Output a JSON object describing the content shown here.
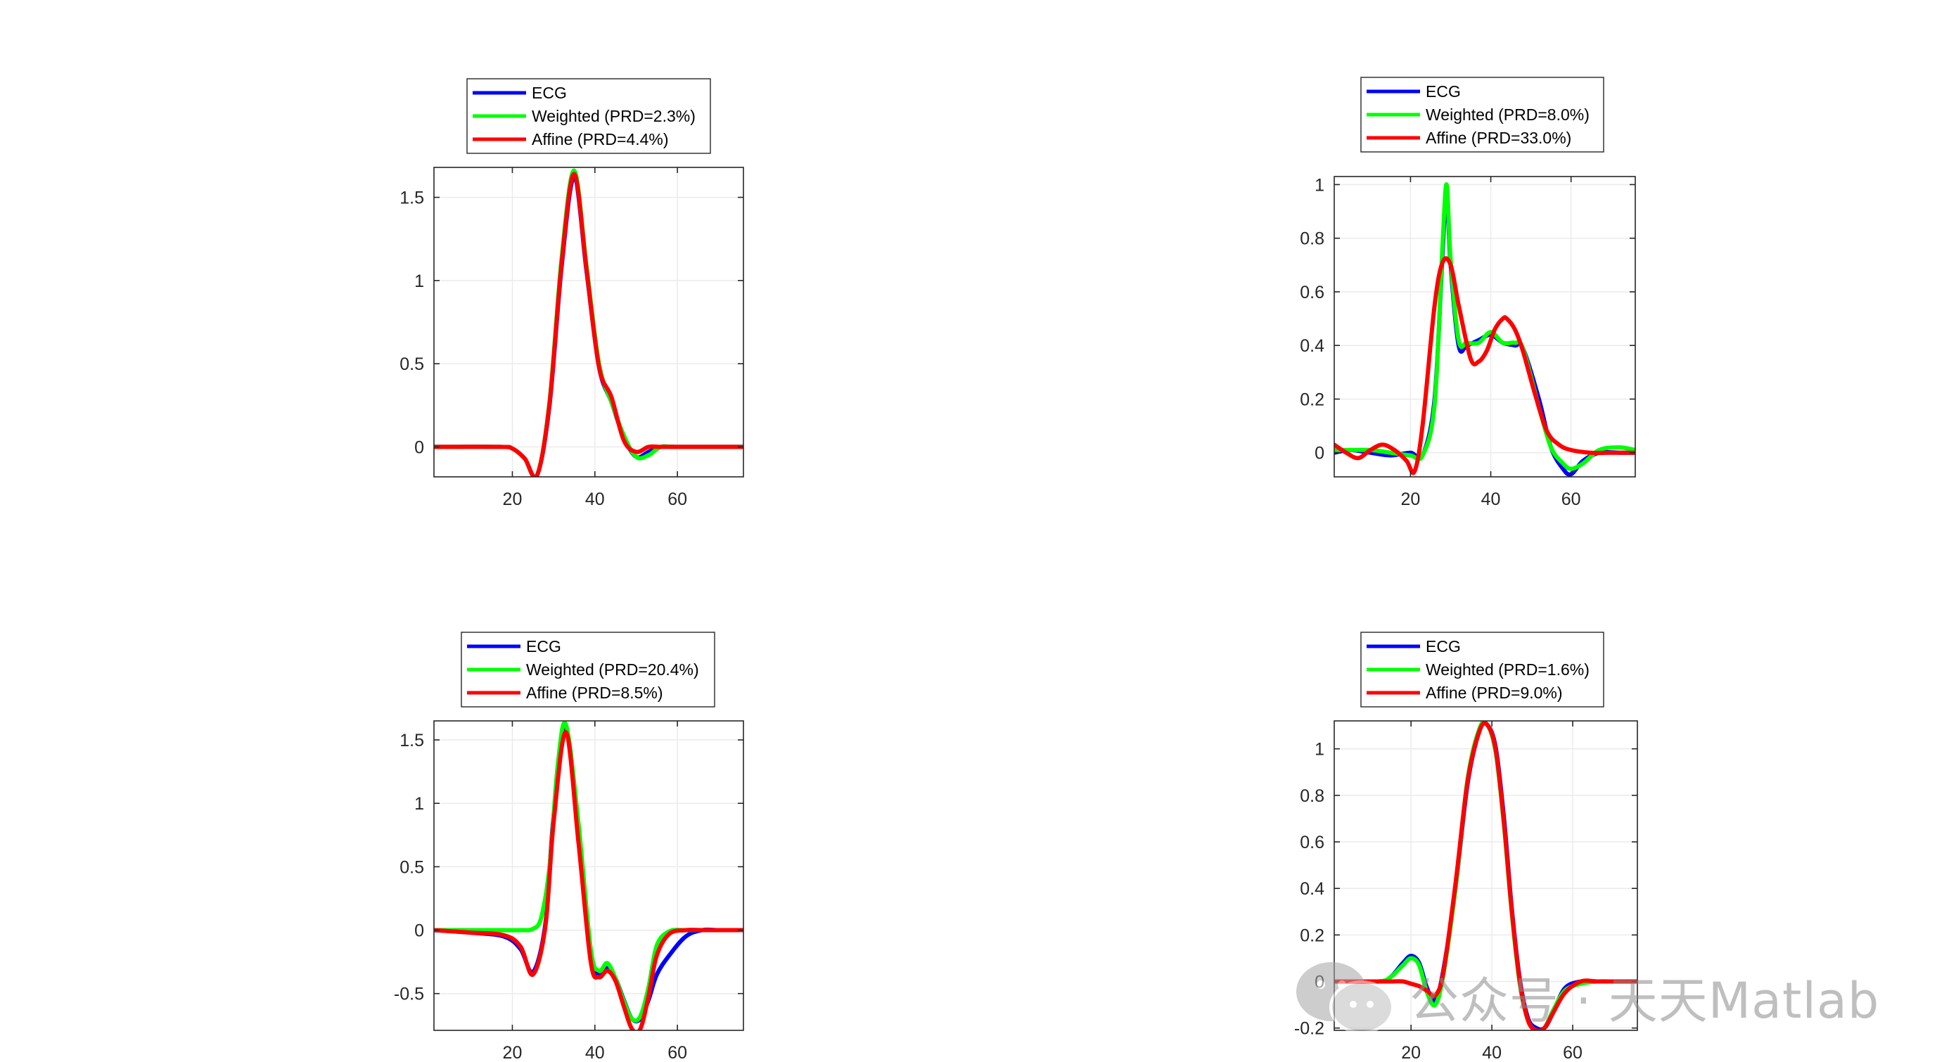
{
  "watermark": {
    "text": "公众号 · 天天Matlab",
    "icon": "wechat-icon"
  },
  "colors": {
    "ECG": "#0000ff",
    "Weighted": "#00ff00",
    "Affine": "#ff0000",
    "axis": "#262626",
    "grid": "#ebebeb"
  },
  "chart_data": [
    {
      "type": "line",
      "xlim": [
        1,
        76
      ],
      "ylim": [
        -0.18,
        1.68
      ],
      "xticks": [
        20,
        40,
        60
      ],
      "yticks": [
        0,
        0.5,
        1,
        1.5
      ],
      "ytick_labels": [
        "0",
        "0.5",
        "1",
        "1.5"
      ],
      "grid": true,
      "legend_position": "top-outside",
      "series": [
        {
          "name": "ECG",
          "x": [
            1,
            17,
            20,
            23,
            26,
            29,
            32,
            35,
            38,
            41,
            44,
            47,
            50,
            53,
            56,
            60,
            76
          ],
          "y": [
            0,
            0,
            -0.01,
            -0.07,
            -0.17,
            0.25,
            1.1,
            1.62,
            1.05,
            0.48,
            0.27,
            0.06,
            -0.06,
            -0.03,
            0,
            0,
            0
          ]
        },
        {
          "name": "Weighted (PRD=2.3%)",
          "x": [
            1,
            17,
            20,
            23,
            26,
            29,
            32,
            35,
            38,
            41,
            44,
            47,
            50,
            53,
            56,
            60,
            76
          ],
          "y": [
            0,
            0,
            -0.01,
            -0.07,
            -0.17,
            0.27,
            1.15,
            1.66,
            1.08,
            0.5,
            0.27,
            0.07,
            -0.06,
            -0.05,
            0,
            0,
            0
          ]
        },
        {
          "name": "Affine (PRD=4.4%)",
          "x": [
            1,
            17,
            20,
            23,
            26,
            29,
            32,
            35,
            38,
            41,
            44,
            47,
            50,
            53,
            56,
            60,
            76
          ],
          "y": [
            0,
            0,
            -0.01,
            -0.07,
            -0.17,
            0.26,
            1.12,
            1.64,
            1.06,
            0.48,
            0.3,
            0.04,
            -0.03,
            0,
            0,
            0,
            0
          ]
        }
      ]
    },
    {
      "type": "line",
      "xlim": [
        1,
        76
      ],
      "ylim": [
        -0.09,
        1.03
      ],
      "xticks": [
        20,
        40,
        60
      ],
      "yticks": [
        0,
        0.2,
        0.4,
        0.6,
        0.8,
        1
      ],
      "ytick_labels": [
        "0",
        "0.2",
        "0.4",
        "0.6",
        "0.8",
        "1"
      ],
      "grid": true,
      "legend_position": "top-outside",
      "series": [
        {
          "name": "ECG",
          "x": [
            1,
            5,
            10,
            15,
            20,
            23,
            26,
            28,
            29,
            30,
            32,
            34,
            37,
            40,
            43,
            46,
            48,
            52,
            55,
            58,
            60,
            63,
            67,
            72,
            76
          ],
          "y": [
            0,
            0.01,
            0,
            -0.01,
            0,
            -0.01,
            0.2,
            0.75,
            0.97,
            0.7,
            0.4,
            0.4,
            0.42,
            0.44,
            0.41,
            0.4,
            0.39,
            0.2,
            0.02,
            -0.06,
            -0.08,
            -0.03,
            0,
            0,
            0
          ]
        },
        {
          "name": "Weighted (PRD=8.0%)",
          "x": [
            1,
            5,
            10,
            15,
            20,
            23,
            26,
            28,
            29,
            30,
            32,
            34,
            37,
            40,
            43,
            46,
            48,
            52,
            55,
            58,
            60,
            63,
            67,
            72,
            76
          ],
          "y": [
            0.01,
            0.01,
            0.01,
            0,
            -0.01,
            -0.01,
            0.18,
            0.78,
            1.0,
            0.72,
            0.42,
            0.41,
            0.41,
            0.45,
            0.41,
            0.41,
            0.39,
            0.17,
            0.02,
            -0.04,
            -0.06,
            -0.04,
            0.01,
            0.02,
            0.01
          ]
        },
        {
          "name": "Affine (PRD=33.0%)",
          "x": [
            1,
            4,
            7,
            10,
            13,
            16,
            19,
            21,
            23,
            26,
            28,
            30,
            32,
            35,
            37,
            39,
            41,
            43,
            44,
            46,
            48,
            51,
            54,
            57,
            60,
            65,
            70,
            76
          ],
          "y": [
            0.03,
            0,
            -0.02,
            0.01,
            0.03,
            0.01,
            -0.03,
            -0.07,
            0.1,
            0.55,
            0.71,
            0.7,
            0.55,
            0.35,
            0.34,
            0.38,
            0.46,
            0.5,
            0.5,
            0.46,
            0.38,
            0.22,
            0.08,
            0.03,
            0.01,
            0,
            0,
            0
          ]
        }
      ]
    },
    {
      "type": "line",
      "xlim": [
        1,
        76
      ],
      "ylim": [
        -0.79,
        1.65
      ],
      "xticks": [
        20,
        40,
        60
      ],
      "yticks": [
        -0.5,
        0,
        0.5,
        1,
        1.5
      ],
      "ytick_labels": [
        "-0.5",
        "0",
        "0.5",
        "1",
        "1.5"
      ],
      "grid": true,
      "legend_position": "top-outside",
      "series": [
        {
          "name": "ECG",
          "x": [
            1,
            10,
            18,
            22,
            25,
            28,
            30,
            33,
            36,
            39,
            41,
            43,
            45,
            47,
            49,
            51,
            53,
            55,
            58,
            62,
            66,
            70,
            76
          ],
          "y": [
            0,
            -0.02,
            -0.05,
            -0.15,
            -0.33,
            0.05,
            0.9,
            1.58,
            0.8,
            -0.2,
            -0.35,
            -0.3,
            -0.38,
            -0.55,
            -0.7,
            -0.7,
            -0.55,
            -0.35,
            -0.2,
            -0.05,
            0,
            0,
            0
          ]
        },
        {
          "name": "Weighted (PRD=20.4%)",
          "x": [
            1,
            10,
            18,
            22,
            25,
            27,
            29,
            31,
            33,
            36,
            39,
            41,
            43,
            45,
            47,
            49,
            51,
            53,
            55,
            58,
            62,
            66,
            70,
            76
          ],
          "y": [
            0,
            0,
            0,
            0,
            0.01,
            0.1,
            0.5,
            1.3,
            1.62,
            0.85,
            -0.15,
            -0.32,
            -0.26,
            -0.38,
            -0.56,
            -0.7,
            -0.68,
            -0.45,
            -0.12,
            -0.01,
            0,
            0,
            0,
            0
          ]
        },
        {
          "name": "Affine (PRD=8.5%)",
          "x": [
            1,
            10,
            18,
            22,
            25,
            28,
            30,
            33,
            36,
            39,
            41,
            43,
            45,
            47,
            49,
            51,
            53,
            55,
            58,
            62,
            66,
            70,
            76
          ],
          "y": [
            0,
            -0.02,
            -0.04,
            -0.13,
            -0.35,
            0.03,
            0.85,
            1.56,
            0.7,
            -0.25,
            -0.37,
            -0.32,
            -0.4,
            -0.6,
            -0.78,
            -0.78,
            -0.52,
            -0.2,
            -0.03,
            0,
            0,
            0,
            0
          ]
        }
      ]
    },
    {
      "type": "line",
      "xlim": [
        1,
        76
      ],
      "ylim": [
        -0.21,
        1.12
      ],
      "xticks": [
        20,
        40,
        60
      ],
      "yticks": [
        -0.2,
        0,
        0.2,
        0.4,
        0.6,
        0.8,
        1
      ],
      "ytick_labels": [
        "-0.2",
        "0",
        "0.2",
        "0.4",
        "0.6",
        "0.8",
        "1"
      ],
      "grid": true,
      "legend_position": "top-outside",
      "series": [
        {
          "name": "ECG",
          "x": [
            1,
            12,
            15,
            18,
            20,
            22,
            24,
            26,
            28,
            31,
            34,
            37,
            39,
            41,
            43,
            45,
            47,
            49,
            51,
            53,
            55,
            58,
            62,
            66,
            70,
            76
          ],
          "y": [
            0,
            0,
            0.02,
            0.08,
            0.11,
            0.08,
            -0.03,
            -0.08,
            0.05,
            0.4,
            0.85,
            1.08,
            1.1,
            1.0,
            0.7,
            0.3,
            0.0,
            -0.16,
            -0.2,
            -0.2,
            -0.14,
            -0.03,
            0,
            0,
            0,
            0
          ]
        },
        {
          "name": "Weighted (PRD=1.6%)",
          "x": [
            1,
            12,
            15,
            18,
            20,
            22,
            24,
            26,
            28,
            31,
            34,
            37,
            39,
            41,
            43,
            45,
            47,
            49,
            51,
            53,
            55,
            58,
            62,
            66,
            70,
            76
          ],
          "y": [
            0,
            0,
            0.02,
            0.07,
            0.1,
            0.07,
            -0.05,
            -0.1,
            0.03,
            0.4,
            0.87,
            1.09,
            1.1,
            0.98,
            0.67,
            0.28,
            -0.02,
            -0.17,
            -0.21,
            -0.2,
            -0.13,
            -0.04,
            -0.01,
            0,
            0,
            0
          ]
        },
        {
          "name": "Affine (PRD=9.0%)",
          "x": [
            1,
            12,
            15,
            18,
            20,
            22,
            24,
            26,
            28,
            31,
            34,
            37,
            39,
            41,
            43,
            45,
            47,
            49,
            51,
            53,
            55,
            58,
            62,
            66,
            70,
            76
          ],
          "y": [
            0,
            0,
            0,
            0,
            -0.01,
            -0.02,
            -0.04,
            -0.06,
            0.04,
            0.42,
            0.86,
            1.08,
            1.1,
            0.99,
            0.68,
            0.29,
            -0.01,
            -0.17,
            -0.21,
            -0.2,
            -0.14,
            -0.05,
            0,
            0,
            0,
            0
          ]
        }
      ]
    }
  ]
}
